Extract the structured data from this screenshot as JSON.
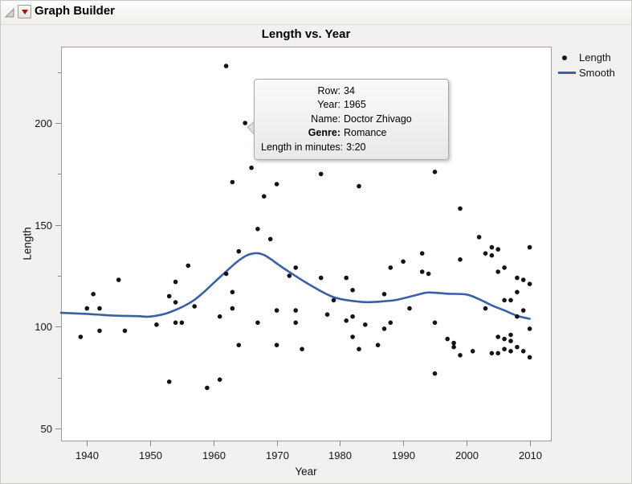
{
  "window": {
    "title": "Graph Builder"
  },
  "icons": {
    "disclosure": "outline-disclosure-triangle",
    "menu": "red-triangle-menu"
  },
  "chart_data": {
    "type": "scatter",
    "title": "Length vs. Year",
    "xlabel": "Year",
    "ylabel": "Length",
    "grid": false,
    "legend_position": "right",
    "xlim": [
      1935.9,
      2013.35
    ],
    "ylim": [
      44.1,
      237.5
    ],
    "x_ticks": [
      1940,
      1950,
      1960,
      1970,
      1980,
      1990,
      2000,
      2010
    ],
    "y_ticks_major": [
      50,
      100,
      150,
      200
    ],
    "y_ticks_minor": [
      75,
      125,
      175,
      225
    ],
    "point_color": "#141414",
    "smooth_color": "#3c5fa4",
    "highlighted_point": {
      "year": 1965,
      "length": 200
    },
    "series": [
      {
        "name": "Length",
        "type": "scatter",
        "points": [
          [
            1962,
            228
          ],
          [
            1965,
            200
          ],
          [
            1966,
            178
          ],
          [
            1963,
            171
          ],
          [
            1970,
            170
          ],
          [
            1977,
            175
          ],
          [
            1983,
            169
          ],
          [
            1968,
            164
          ],
          [
            1967,
            148
          ],
          [
            1969,
            143
          ],
          [
            1964,
            137
          ],
          [
            1995,
            176
          ],
          [
            1999,
            158
          ],
          [
            2002,
            144
          ],
          [
            2004,
            139
          ],
          [
            2005,
            138
          ],
          [
            2010,
            139
          ],
          [
            1956,
            130
          ],
          [
            1962,
            126
          ],
          [
            1945,
            123
          ],
          [
            1954,
            122
          ],
          [
            1941,
            116
          ],
          [
            1953,
            115
          ],
          [
            1954,
            112
          ],
          [
            1940,
            109
          ],
          [
            1942,
            109
          ],
          [
            1957,
            110
          ],
          [
            1961,
            105
          ],
          [
            1951,
            101
          ],
          [
            1954,
            102
          ],
          [
            1955,
            102
          ],
          [
            1942,
            98
          ],
          [
            1946,
            98
          ],
          [
            1939,
            95
          ],
          [
            1953,
            73
          ],
          [
            1959,
            70
          ],
          [
            1961,
            74
          ],
          [
            1963,
            117
          ],
          [
            1963,
            109
          ],
          [
            1973,
            129
          ],
          [
            1972,
            125
          ],
          [
            1977,
            124
          ],
          [
            1981,
            124
          ],
          [
            1982,
            118
          ],
          [
            1987,
            116
          ],
          [
            1979,
            113
          ],
          [
            1970,
            108
          ],
          [
            1973,
            108
          ],
          [
            1978,
            106
          ],
          [
            1967,
            102
          ],
          [
            1973,
            102
          ],
          [
            1981,
            103
          ],
          [
            1982,
            105
          ],
          [
            1984,
            101
          ],
          [
            1987,
            99
          ],
          [
            1988,
            102
          ],
          [
            1964,
            91
          ],
          [
            1970,
            91
          ],
          [
            1974,
            89
          ],
          [
            1983,
            89
          ],
          [
            1986,
            91
          ],
          [
            1982,
            95
          ],
          [
            1988,
            129
          ],
          [
            1990,
            132
          ],
          [
            1993,
            136
          ],
          [
            1993,
            127
          ],
          [
            1994,
            126
          ],
          [
            1999,
            133
          ],
          [
            2003,
            136
          ],
          [
            2004,
            135
          ],
          [
            2005,
            127
          ],
          [
            2006,
            129
          ],
          [
            2008,
            124
          ],
          [
            2009,
            123
          ],
          [
            2010,
            121
          ],
          [
            1991,
            109
          ],
          [
            1995,
            102
          ],
          [
            1997,
            94
          ],
          [
            1998,
            92
          ],
          [
            1998,
            90
          ],
          [
            1999,
            86
          ],
          [
            2001,
            88
          ],
          [
            1995,
            77
          ],
          [
            2008,
            117
          ],
          [
            2006,
            113
          ],
          [
            2007,
            113
          ],
          [
            2003,
            109
          ],
          [
            2009,
            108
          ],
          [
            2008,
            105
          ],
          [
            2010,
            99
          ],
          [
            2005,
            95
          ],
          [
            2006,
            94
          ],
          [
            2007,
            96
          ],
          [
            2007,
            93
          ],
          [
            2006,
            89
          ],
          [
            2007,
            88
          ],
          [
            2008,
            90
          ],
          [
            2004,
            87
          ],
          [
            2005,
            87
          ],
          [
            2010,
            85
          ],
          [
            2009,
            88
          ]
        ]
      },
      {
        "name": "Smooth",
        "type": "line",
        "points": [
          [
            1935.9,
            106.8
          ],
          [
            1940,
            106.3
          ],
          [
            1944,
            105.5
          ],
          [
            1948,
            105.2
          ],
          [
            1950,
            105.0
          ],
          [
            1953,
            107.0
          ],
          [
            1957,
            113.2
          ],
          [
            1961,
            124.3
          ],
          [
            1964,
            132.5
          ],
          [
            1966,
            135.8
          ],
          [
            1968,
            135.2
          ],
          [
            1971,
            128.9
          ],
          [
            1975,
            121.0
          ],
          [
            1979,
            114.5
          ],
          [
            1983,
            112.3
          ],
          [
            1985,
            112.1
          ],
          [
            1987,
            112.5
          ],
          [
            1989,
            113.2
          ],
          [
            1992,
            115.5
          ],
          [
            1994,
            116.8
          ],
          [
            1997,
            116.2
          ],
          [
            2000,
            115.8
          ],
          [
            2002,
            113.5
          ],
          [
            2004,
            110.5
          ],
          [
            2006,
            108.0
          ],
          [
            2008,
            105.4
          ],
          [
            2010,
            103.9
          ]
        ]
      }
    ]
  },
  "legend": {
    "items": [
      {
        "label": "Length",
        "marker": "dot"
      },
      {
        "label": "Smooth",
        "marker": "line"
      }
    ]
  },
  "tooltip": {
    "rows": [
      {
        "label": "Row:",
        "value": "34",
        "bold_label": false
      },
      {
        "label": "Year:",
        "value": "1965",
        "bold_label": false
      },
      {
        "label": "Name:",
        "value": "Doctor Zhivago",
        "bold_label": false
      },
      {
        "label": "Genre:",
        "value": "Romance",
        "bold_label": true
      },
      {
        "label": "Length in minutes:",
        "value": "3:20",
        "bold_label": false
      }
    ]
  }
}
